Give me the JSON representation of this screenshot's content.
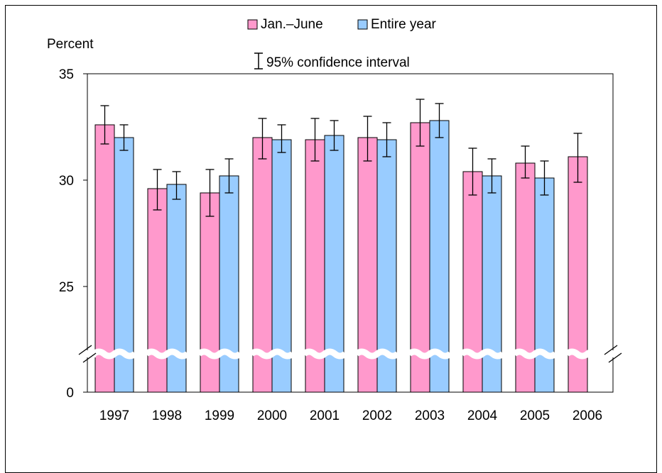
{
  "chart_data": {
    "type": "bar",
    "title": "",
    "xlabel": "",
    "ylabel": "Percent",
    "ylim": [
      0,
      35
    ],
    "axis_break": true,
    "y_ticks": [
      "0",
      "25",
      "30",
      "35"
    ],
    "categories": [
      "1997",
      "1998",
      "1999",
      "2000",
      "2001",
      "2002",
      "2003",
      "2004",
      "2005",
      "2006"
    ],
    "series": [
      {
        "name": "Jan.–June",
        "color": "#ff99cc",
        "values": [
          32.6,
          29.6,
          29.4,
          32.0,
          31.9,
          32.0,
          32.7,
          30.4,
          30.8,
          31.1
        ],
        "ci_low": [
          31.7,
          28.6,
          28.3,
          31.0,
          30.9,
          30.9,
          31.6,
          29.3,
          30.1,
          29.9
        ],
        "ci_high": [
          33.5,
          30.5,
          30.5,
          32.9,
          32.9,
          33.0,
          33.8,
          31.5,
          31.6,
          32.2
        ]
      },
      {
        "name": "Entire year",
        "color": "#99ccff",
        "values": [
          32.0,
          29.8,
          30.2,
          31.9,
          32.1,
          31.9,
          32.8,
          30.2,
          30.1,
          null
        ],
        "ci_low": [
          31.4,
          29.1,
          29.4,
          31.3,
          31.4,
          31.1,
          32.0,
          29.4,
          29.3,
          null
        ],
        "ci_high": [
          32.6,
          30.4,
          31.0,
          32.6,
          32.8,
          32.7,
          33.6,
          31.0,
          30.9,
          null
        ]
      }
    ],
    "legend": {
      "placement": "top",
      "entries": [
        "Jan.–June",
        "Entire year"
      ],
      "ci_label": "95% confidence interval"
    },
    "grid": false
  }
}
